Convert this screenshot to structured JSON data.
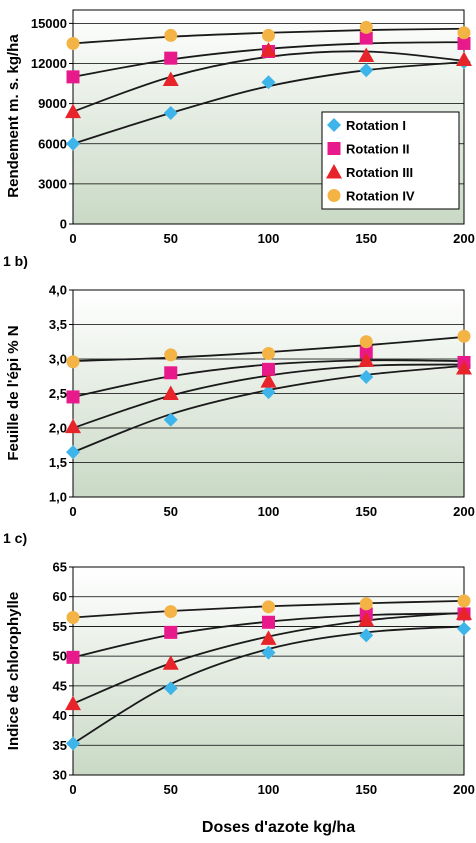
{
  "chart_data": [
    {
      "type": "scatter",
      "panel_label": "",
      "ylabel": "Rendement m. s. kg/ha",
      "ylim": [
        0,
        16000
      ],
      "yticks": [
        "0",
        "3000",
        "6000",
        "9000",
        "12000",
        "15000"
      ],
      "yticks_values": [
        0,
        3000,
        6000,
        9000,
        12000,
        15000
      ],
      "xlim": [
        0,
        200
      ],
      "xticks": [
        "0",
        "50",
        "100",
        "150",
        "200"
      ],
      "xticks_values": [
        0,
        50,
        100,
        150,
        200
      ],
      "x": [
        0,
        50,
        100,
        150,
        200
      ],
      "grid": true,
      "legend_position": "bottom-right",
      "series": [
        {
          "name": "Rotation I",
          "marker": "diamond",
          "color": "#3db4ea",
          "values": [
            6000,
            8300,
            10600,
            11500,
            12100
          ],
          "trend": [
            6000,
            8300,
            10300,
            11500,
            12100
          ]
        },
        {
          "name": "Rotation II",
          "marker": "square",
          "color": "#e8198b",
          "values": [
            11000,
            12400,
            12900,
            13900,
            13500
          ],
          "trend": [
            11000,
            12300,
            13100,
            13500,
            13600
          ]
        },
        {
          "name": "Rotation III",
          "marker": "triangle",
          "color": "#e8242b",
          "values": [
            8400,
            10800,
            13000,
            12600,
            12300
          ],
          "trend": [
            8400,
            11000,
            12500,
            12900,
            12200
          ]
        },
        {
          "name": "Rotation IV",
          "marker": "circle",
          "color": "#f3b445",
          "values": [
            13500,
            14100,
            14100,
            14700,
            14300
          ],
          "trend": [
            13500,
            14000,
            14300,
            14500,
            14600
          ]
        }
      ]
    },
    {
      "type": "scatter",
      "panel_label": "1 b)",
      "ylabel": "Feuille de l'épi % N",
      "ylim": [
        1.0,
        4.0
      ],
      "yticks": [
        "1,0",
        "1,5",
        "2,0",
        "2,5",
        "3,0",
        "3,5",
        "4,0"
      ],
      "yticks_values": [
        1.0,
        1.5,
        2.0,
        2.5,
        3.0,
        3.5,
        4.0
      ],
      "xlim": [
        0,
        200
      ],
      "xticks": [
        "0",
        "50",
        "100",
        "150",
        "200"
      ],
      "xticks_values": [
        0,
        50,
        100,
        150,
        200
      ],
      "x": [
        0,
        50,
        100,
        150,
        200
      ],
      "grid": true,
      "series": [
        {
          "name": "Rotation I",
          "marker": "diamond",
          "color": "#3db4ea",
          "values": [
            1.65,
            2.12,
            2.52,
            2.74,
            2.9
          ],
          "trend": [
            1.65,
            2.2,
            2.55,
            2.77,
            2.9
          ]
        },
        {
          "name": "Rotation II",
          "marker": "square",
          "color": "#e8198b",
          "values": [
            2.45,
            2.8,
            2.85,
            3.1,
            2.95
          ],
          "trend": [
            2.45,
            2.75,
            2.92,
            2.98,
            2.97
          ]
        },
        {
          "name": "Rotation III",
          "marker": "triangle",
          "color": "#e8242b",
          "values": [
            2.02,
            2.5,
            2.68,
            2.98,
            2.87
          ],
          "trend": [
            2.0,
            2.47,
            2.76,
            2.9,
            2.92
          ]
        },
        {
          "name": "Rotation IV",
          "marker": "circle",
          "color": "#f3b445",
          "values": [
            2.96,
            3.06,
            3.08,
            3.25,
            3.33
          ],
          "trend": [
            2.97,
            3.02,
            3.1,
            3.2,
            3.32
          ]
        }
      ]
    },
    {
      "type": "scatter",
      "panel_label": "1 c)",
      "ylabel": "Indice de chlorophylle",
      "ylim": [
        30,
        65
      ],
      "yticks": [
        "30",
        "35",
        "40",
        "45",
        "50",
        "55",
        "60",
        "65"
      ],
      "yticks_values": [
        30,
        35,
        40,
        45,
        50,
        55,
        60,
        65
      ],
      "xlim": [
        0,
        200
      ],
      "xticks": [
        "0",
        "50",
        "100",
        "150",
        "200"
      ],
      "xticks_values": [
        0,
        50,
        100,
        150,
        200
      ],
      "x": [
        0,
        50,
        100,
        150,
        200
      ],
      "xlabel": "Doses d'azote   kg/ha",
      "grid": true,
      "series": [
        {
          "name": "Rotation I",
          "marker": "diamond",
          "color": "#3db4ea",
          "values": [
            35.3,
            44.6,
            50.6,
            53.5,
            54.6
          ],
          "trend": [
            35.3,
            45.3,
            51.2,
            54.0,
            55.0
          ]
        },
        {
          "name": "Rotation II",
          "marker": "square",
          "color": "#e8198b",
          "values": [
            49.8,
            54.0,
            55.7,
            57.1,
            57.1
          ],
          "trend": [
            49.8,
            53.6,
            55.8,
            56.9,
            57.2
          ]
        },
        {
          "name": "Rotation III",
          "marker": "triangle",
          "color": "#e8242b",
          "values": [
            42.0,
            48.8,
            53.0,
            56.1,
            57.2
          ],
          "trend": [
            42.0,
            48.8,
            53.3,
            56.0,
            57.3
          ]
        },
        {
          "name": "Rotation IV",
          "marker": "circle",
          "color": "#f3b445",
          "values": [
            56.5,
            57.5,
            58.3,
            58.8,
            59.3
          ],
          "trend": [
            56.5,
            57.6,
            58.4,
            58.9,
            59.3
          ]
        }
      ]
    }
  ]
}
